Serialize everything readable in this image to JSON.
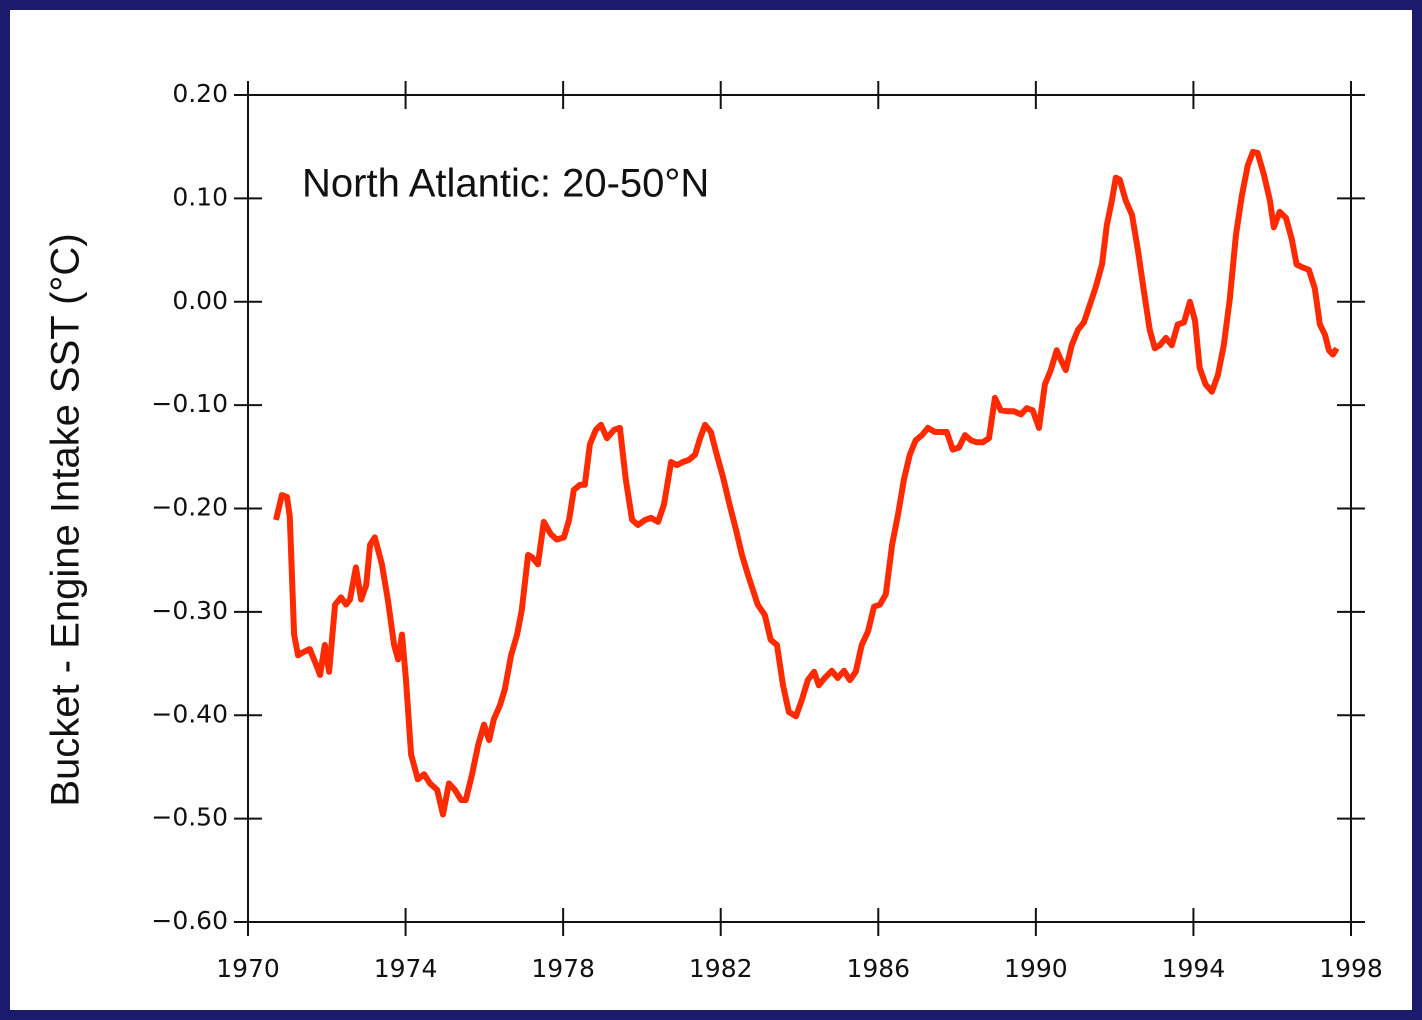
{
  "chart_data": {
    "type": "line",
    "ylabel": "Bucket - Engine Intake SST (°C)",
    "annotation": "North Atlantic: 20-50°N",
    "xlim": [
      1970,
      1998
    ],
    "xticks": [
      1970,
      1974,
      1978,
      1982,
      1986,
      1990,
      1994,
      1998
    ],
    "ylim": [
      -0.6,
      0.2
    ],
    "yticks": [
      {
        "value": -0.6,
        "label": "−0.60"
      },
      {
        "value": -0.5,
        "label": "−0.50"
      },
      {
        "value": -0.4,
        "label": "−0.40"
      },
      {
        "value": -0.3,
        "label": "−0.30"
      },
      {
        "value": -0.2,
        "label": "−0.20"
      },
      {
        "value": -0.1,
        "label": "−0.10"
      },
      {
        "value": 0,
        "label": "0.00"
      },
      {
        "value": 0.1,
        "label": "0.10"
      },
      {
        "value": 0.2,
        "label": "0.20"
      }
    ],
    "x": [
      1970.71,
      1970.86,
      1970.99,
      1971.06,
      1971.17,
      1971.27,
      1971.4,
      1971.57,
      1971.73,
      1971.83,
      1971.95,
      1972.06,
      1972.21,
      1972.36,
      1972.49,
      1972.59,
      1972.74,
      1972.87,
      1973.0,
      1973.1,
      1973.22,
      1973.4,
      1973.55,
      1973.71,
      1973.81,
      1973.91,
      1974.01,
      1974.14,
      1974.31,
      1974.47,
      1974.62,
      1974.8,
      1974.95,
      1975.1,
      1975.25,
      1975.41,
      1975.53,
      1975.69,
      1975.84,
      1975.99,
      1976.12,
      1976.24,
      1976.4,
      1976.52,
      1976.68,
      1976.83,
      1976.95,
      1977.11,
      1977.21,
      1977.36,
      1977.51,
      1977.69,
      1977.84,
      1978.02,
      1978.15,
      1978.27,
      1978.43,
      1978.55,
      1978.68,
      1978.83,
      1978.96,
      1979.11,
      1979.29,
      1979.44,
      1979.59,
      1979.75,
      1979.9,
      1980.08,
      1980.23,
      1980.41,
      1980.56,
      1980.74,
      1980.89,
      1981.04,
      1981.19,
      1981.35,
      1981.47,
      1981.6,
      1981.75,
      1981.9,
      1982.06,
      1982.21,
      1982.39,
      1982.54,
      1982.69,
      1982.82,
      1982.94,
      1983.12,
      1983.27,
      1983.43,
      1983.58,
      1983.73,
      1983.91,
      1984.06,
      1984.21,
      1984.37,
      1984.49,
      1984.64,
      1984.82,
      1984.97,
      1985.13,
      1985.28,
      1985.43,
      1985.58,
      1985.74,
      1985.89,
      1986.04,
      1986.19,
      1986.35,
      1986.5,
      1986.65,
      1986.8,
      1986.95,
      1987.11,
      1987.26,
      1987.44,
      1987.59,
      1987.74,
      1987.89,
      1988.05,
      1988.2,
      1988.35,
      1988.5,
      1988.65,
      1988.81,
      1988.96,
      1989.11,
      1989.29,
      1989.44,
      1989.62,
      1989.77,
      1989.92,
      1990.08,
      1990.23,
      1990.38,
      1990.53,
      1990.63,
      1990.76,
      1990.91,
      1991.07,
      1991.22,
      1991.37,
      1991.52,
      1991.68,
      1991.8,
      1991.93,
      1992.03,
      1992.13,
      1992.28,
      1992.44,
      1992.59,
      1992.74,
      1992.89,
      1993.02,
      1993.15,
      1993.3,
      1993.45,
      1993.6,
      1993.76,
      1993.91,
      1994.04,
      1994.16,
      1994.31,
      1994.47,
      1994.62,
      1994.77,
      1994.92,
      1995.08,
      1995.23,
      1995.38,
      1995.51,
      1995.63,
      1995.79,
      1995.94,
      1996.04,
      1996.19,
      1996.35,
      1996.5,
      1996.62,
      1996.78,
      1996.93,
      1997.08,
      1997.21,
      1997.34,
      1997.44,
      1997.54,
      1997.64
    ],
    "series": [
      {
        "color": "#ff2a00",
        "values": [
          -0.211,
          -0.187,
          -0.189,
          -0.208,
          -0.322,
          -0.342,
          -0.339,
          -0.336,
          -0.351,
          -0.361,
          -0.332,
          -0.358,
          -0.293,
          -0.286,
          -0.293,
          -0.288,
          -0.257,
          -0.288,
          -0.274,
          -0.235,
          -0.228,
          -0.254,
          -0.288,
          -0.332,
          -0.346,
          -0.322,
          -0.366,
          -0.438,
          -0.462,
          -0.457,
          -0.466,
          -0.472,
          -0.496,
          -0.466,
          -0.472,
          -0.482,
          -0.482,
          -0.457,
          -0.429,
          -0.409,
          -0.424,
          -0.404,
          -0.39,
          -0.375,
          -0.342,
          -0.322,
          -0.298,
          -0.245,
          -0.247,
          -0.254,
          -0.213,
          -0.225,
          -0.23,
          -0.228,
          -0.211,
          -0.182,
          -0.177,
          -0.177,
          -0.138,
          -0.124,
          -0.119,
          -0.132,
          -0.124,
          -0.122,
          -0.172,
          -0.211,
          -0.216,
          -0.211,
          -0.209,
          -0.213,
          -0.196,
          -0.155,
          -0.158,
          -0.155,
          -0.153,
          -0.148,
          -0.133,
          -0.119,
          -0.126,
          -0.148,
          -0.17,
          -0.194,
          -0.221,
          -0.245,
          -0.264,
          -0.279,
          -0.293,
          -0.303,
          -0.327,
          -0.332,
          -0.371,
          -0.397,
          -0.401,
          -0.385,
          -0.366,
          -0.358,
          -0.371,
          -0.364,
          -0.357,
          -0.364,
          -0.357,
          -0.366,
          -0.358,
          -0.332,
          -0.319,
          -0.295,
          -0.293,
          -0.283,
          -0.235,
          -0.206,
          -0.172,
          -0.148,
          -0.134,
          -0.129,
          -0.122,
          -0.126,
          -0.126,
          -0.126,
          -0.143,
          -0.141,
          -0.129,
          -0.134,
          -0.136,
          -0.136,
          -0.132,
          -0.093,
          -0.105,
          -0.106,
          -0.106,
          -0.109,
          -0.103,
          -0.105,
          -0.122,
          -0.08,
          -0.066,
          -0.047,
          -0.056,
          -0.066,
          -0.042,
          -0.027,
          -0.02,
          -0.003,
          0.014,
          0.036,
          0.074,
          0.098,
          0.12,
          0.118,
          0.098,
          0.084,
          0.05,
          0.011,
          -0.027,
          -0.045,
          -0.042,
          -0.035,
          -0.042,
          -0.022,
          -0.02,
          0.0,
          -0.018,
          -0.064,
          -0.08,
          -0.087,
          -0.071,
          -0.042,
          0.002,
          0.065,
          0.103,
          0.132,
          0.145,
          0.144,
          0.123,
          0.098,
          0.072,
          0.087,
          0.081,
          0.06,
          0.036,
          0.033,
          0.031,
          0.013,
          -0.022,
          -0.032,
          -0.047,
          -0.051,
          -0.045
        ]
      }
    ]
  }
}
